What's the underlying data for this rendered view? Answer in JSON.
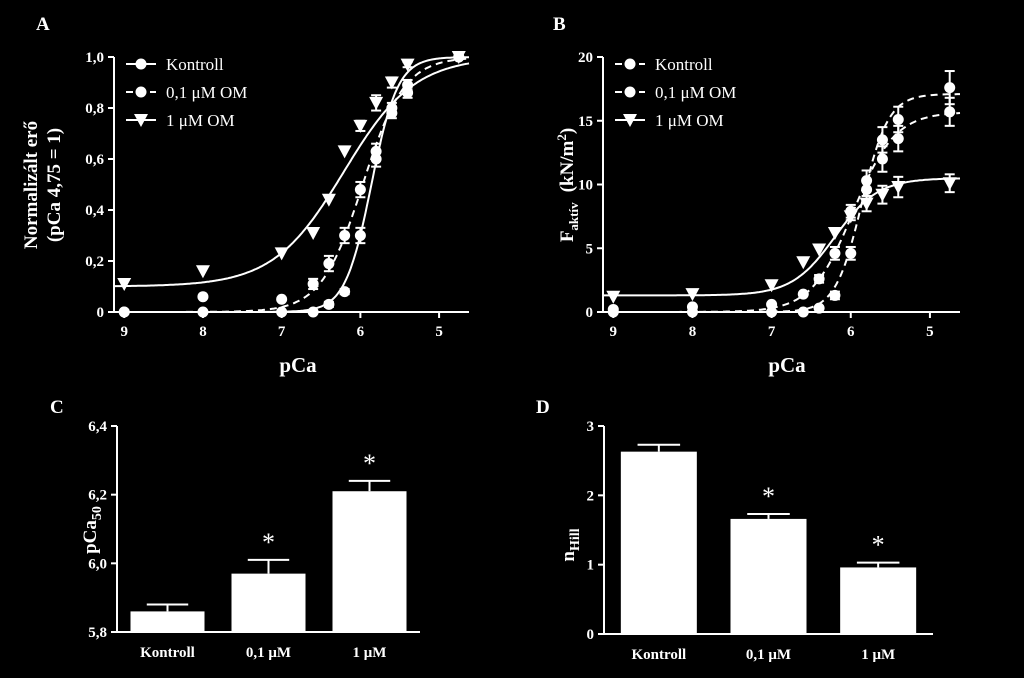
{
  "chart_data": [
    {
      "panel": "A",
      "type": "scatter",
      "xlabel": "pCa",
      "ylabel": [
        "Normalizált erő",
        "(pCa 4,75 = 1)"
      ],
      "xlim": [
        9.13,
        4.62
      ],
      "ylim": [
        0,
        1
      ],
      "x_ticks": [
        "9",
        "8",
        "7",
        "6",
        "5"
      ],
      "y_ticks": [
        "0",
        "0,2",
        "0,4",
        "0,6",
        "0,8",
        "1,0"
      ],
      "legend": [
        "Kontroll",
        "0,1 μM OM",
        "1 μM OM"
      ],
      "legend_position": "top-left",
      "series": [
        {
          "name": "Kontroll",
          "marker": "circle",
          "line": "solid",
          "fit": {
            "bottom": 0.0,
            "top": 1.0,
            "pCa50": 5.86,
            "nH": 2.6
          },
          "points": [
            [
              9,
              0.0,
              0
            ],
            [
              8,
              0.0,
              0
            ],
            [
              7,
              0.0,
              0
            ],
            [
              6.6,
              0.0,
              0
            ],
            [
              6.4,
              0.03,
              0.01
            ],
            [
              6.2,
              0.08,
              0.01
            ],
            [
              6.0,
              0.3,
              0.03
            ],
            [
              5.8,
              0.6,
              0.03
            ],
            [
              5.6,
              0.78,
              0.02
            ],
            [
              5.4,
              0.86,
              0.02
            ],
            [
              4.75,
              1.0,
              0
            ]
          ]
        },
        {
          "name": "0,1 μM OM",
          "marker": "circle",
          "line": "dashed",
          "fit": {
            "bottom": 0.0,
            "top": 1.0,
            "pCa50": 5.97,
            "nH": 1.65
          },
          "points": [
            [
              9,
              0.0,
              0
            ],
            [
              8,
              0.06,
              0
            ],
            [
              7,
              0.05,
              0
            ],
            [
              6.6,
              0.11,
              0.02
            ],
            [
              6.4,
              0.19,
              0.03
            ],
            [
              6.2,
              0.3,
              0.03
            ],
            [
              6.0,
              0.48,
              0.03
            ],
            [
              5.8,
              0.63,
              0.03
            ],
            [
              5.6,
              0.8,
              0.02
            ],
            [
              5.4,
              0.89,
              0.02
            ],
            [
              4.75,
              1.0,
              0
            ]
          ]
        },
        {
          "name": "1 μM OM",
          "marker": "triangle-down",
          "line": "solid",
          "fit": {
            "bottom": 0.1,
            "top": 1.0,
            "pCa50": 6.21,
            "nH": 0.97
          },
          "points": [
            [
              9,
              0.11,
              0
            ],
            [
              8,
              0.16,
              0
            ],
            [
              7,
              0.23,
              0
            ],
            [
              6.6,
              0.31,
              0
            ],
            [
              6.4,
              0.44,
              0
            ],
            [
              6.2,
              0.63,
              0
            ],
            [
              6.0,
              0.73,
              0.02
            ],
            [
              5.8,
              0.82,
              0.03
            ],
            [
              5.6,
              0.9,
              0.02
            ],
            [
              5.4,
              0.97,
              0.01
            ],
            [
              4.75,
              1.0,
              0
            ]
          ]
        }
      ]
    },
    {
      "panel": "B",
      "type": "scatter",
      "xlabel": "pCa",
      "ylabel": {
        "main": "F",
        "sub": "aktív",
        "units": "(kN/m",
        "sup": "2",
        "close": ")"
      },
      "xlim": [
        9.13,
        4.62
      ],
      "ylim": [
        0,
        20
      ],
      "x_ticks": [
        "9",
        "8",
        "7",
        "6",
        "5"
      ],
      "y_ticks": [
        "0",
        "5",
        "10",
        "15",
        "20"
      ],
      "legend": [
        "Kontroll",
        "0,1 μM OM",
        "1 μM OM"
      ],
      "legend_position": "top-left",
      "series": [
        {
          "name": "Kontroll",
          "marker": "circle",
          "line": "dashed",
          "fit": {
            "bottom": 0.0,
            "top": 17.1,
            "pCa50": 5.86,
            "nH": 2.6
          },
          "points": [
            [
              9,
              0.0,
              0
            ],
            [
              8,
              0.0,
              0
            ],
            [
              7,
              0.0,
              0
            ],
            [
              6.6,
              0.0,
              0
            ],
            [
              6.4,
              0.3,
              0
            ],
            [
              6.2,
              1.3,
              0.3
            ],
            [
              6.0,
              4.6,
              0.5
            ],
            [
              5.8,
              10.3,
              0.8
            ],
            [
              5.6,
              13.5,
              1.0
            ],
            [
              5.4,
              15.1,
              1.0
            ],
            [
              4.75,
              17.6,
              1.3
            ]
          ]
        },
        {
          "name": "0,1 μM OM",
          "marker": "circle",
          "line": "dashed",
          "fit": {
            "bottom": 0.0,
            "top": 15.7,
            "pCa50": 5.97,
            "nH": 1.65
          },
          "points": [
            [
              9,
              0.2,
              0
            ],
            [
              8,
              0.4,
              0
            ],
            [
              7,
              0.6,
              0
            ],
            [
              6.6,
              1.4,
              0
            ],
            [
              6.4,
              2.6,
              0.3
            ],
            [
              6.2,
              4.6,
              0.5
            ],
            [
              6.0,
              7.9,
              0.5
            ],
            [
              5.8,
              9.6,
              0.8
            ],
            [
              5.6,
              12.0,
              1.0
            ],
            [
              5.4,
              13.6,
              1.0
            ],
            [
              4.75,
              15.7,
              1.1
            ]
          ]
        },
        {
          "name": "1 μM OM",
          "marker": "triangle-down",
          "line": "solid",
          "fit": {
            "bottom": 1.3,
            "top": 10.5,
            "pCa50": 6.2,
            "nH": 1.6
          },
          "points": [
            [
              9,
              1.2,
              0
            ],
            [
              8,
              1.4,
              0
            ],
            [
              7,
              2.1,
              0
            ],
            [
              6.6,
              3.9,
              0
            ],
            [
              6.4,
              4.9,
              0
            ],
            [
              6.2,
              6.2,
              0
            ],
            [
              6.0,
              7.5,
              0.3
            ],
            [
              5.8,
              8.5,
              0.6
            ],
            [
              5.6,
              9.2,
              0.7
            ],
            [
              5.4,
              9.8,
              0.8
            ],
            [
              4.75,
              10.1,
              0.7
            ]
          ]
        }
      ]
    },
    {
      "panel": "C",
      "type": "bar",
      "categories": [
        "Kontroll",
        "0,1 μM",
        "1 μM"
      ],
      "values": [
        5.86,
        5.97,
        6.21
      ],
      "errors": [
        0.02,
        0.04,
        0.03
      ],
      "significance": [
        "",
        "*",
        "*"
      ],
      "ylabel": {
        "main": "pCa",
        "sub": "50"
      },
      "ylim": [
        5.8,
        6.4
      ],
      "y_ticks": [
        "5,8",
        "6,0",
        "6,2",
        "6,4"
      ]
    },
    {
      "panel": "D",
      "type": "bar",
      "categories": [
        "Kontroll",
        "0,1 μM",
        "1 μM"
      ],
      "values": [
        2.63,
        1.66,
        0.96
      ],
      "errors": [
        0.1,
        0.07,
        0.07
      ],
      "significance": [
        "",
        "*",
        "*"
      ],
      "ylabel": {
        "main": "n",
        "sub": "Hill"
      },
      "ylim": [
        0,
        3
      ],
      "y_ticks": [
        "0",
        "1",
        "2",
        "3"
      ]
    }
  ]
}
